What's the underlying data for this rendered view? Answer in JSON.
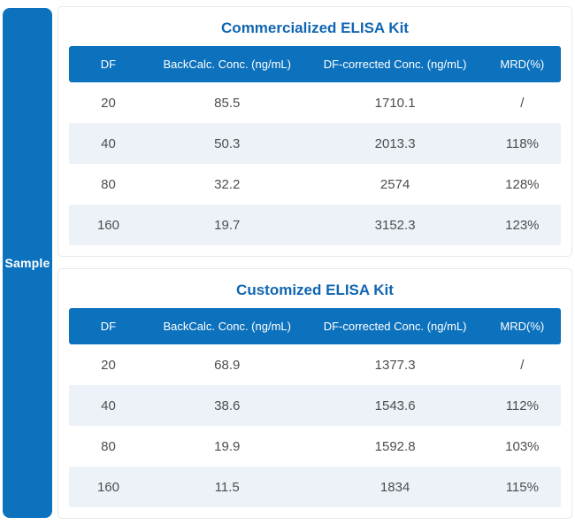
{
  "sidebar": {
    "label": "Sample"
  },
  "colors": {
    "primary_blue": "#0d72bd",
    "title_blue": "#1166b2",
    "alt_row": "#edf2f9",
    "cell_text": "#4d4d4d",
    "card_border": "#e8e8e8"
  },
  "chart_data": [
    {
      "type": "table",
      "title": "Commercialized ELISA Kit",
      "columns": [
        "DF",
        "BackCalc. Conc. (ng/mL)",
        "DF-corrected Conc. (ng/mL)",
        "MRD(%)"
      ],
      "rows": [
        [
          "20",
          "85.5",
          "1710.1",
          "/"
        ],
        [
          "40",
          "50.3",
          "2013.3",
          "118%"
        ],
        [
          "80",
          "32.2",
          "2574",
          "128%"
        ],
        [
          "160",
          "19.7",
          "3152.3",
          "123%"
        ]
      ]
    },
    {
      "type": "table",
      "title": "Customized ELISA Kit",
      "columns": [
        "DF",
        "BackCalc. Conc. (ng/mL)",
        "DF-corrected Conc. (ng/mL)",
        "MRD(%)"
      ],
      "rows": [
        [
          "20",
          "68.9",
          "1377.3",
          "/"
        ],
        [
          "40",
          "38.6",
          "1543.6",
          "112%"
        ],
        [
          "80",
          "19.9",
          "1592.8",
          "103%"
        ],
        [
          "160",
          "11.5",
          "1834",
          "115%"
        ]
      ]
    }
  ]
}
